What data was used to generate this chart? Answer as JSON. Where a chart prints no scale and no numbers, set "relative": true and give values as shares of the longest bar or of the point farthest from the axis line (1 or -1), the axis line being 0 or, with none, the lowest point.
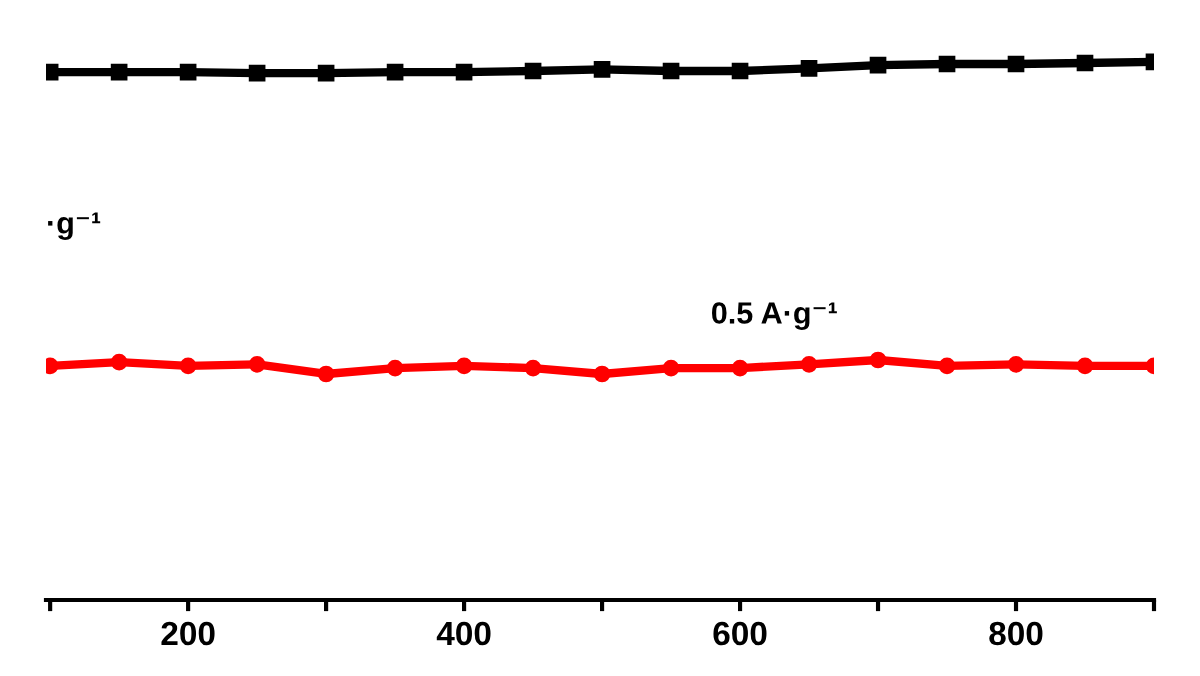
{
  "chart_data": {
    "type": "line",
    "relative": true,
    "xlim": [
      97,
      900
    ],
    "xticks": [
      {
        "value": 100,
        "label": null
      },
      200,
      {
        "value": 300,
        "label": null
      },
      400,
      {
        "value": 500,
        "label": null
      },
      600,
      {
        "value": 700,
        "label": null
      },
      800,
      {
        "value": 900,
        "label": null
      }
    ],
    "x": [
      100,
      150,
      200,
      250,
      300,
      350,
      400,
      450,
      500,
      550,
      600,
      650,
      700,
      750,
      800,
      850,
      900
    ],
    "series": [
      {
        "color": "#000000",
        "marker": "square",
        "values": [
          0.981,
          0.981,
          0.981,
          0.979,
          0.979,
          0.981,
          0.981,
          0.983,
          0.986,
          0.983,
          0.983,
          0.988,
          0.994,
          0.996,
          0.996,
          0.998,
          1.0
        ]
      },
      {
        "color": "#ff0000",
        "marker": "circle",
        "values": [
          0.435,
          0.442,
          0.435,
          0.438,
          0.42,
          0.431,
          0.435,
          0.431,
          0.42,
          0.431,
          0.431,
          0.438,
          0.446,
          0.435,
          0.438,
          0.435,
          0.435
        ]
      }
    ],
    "annotations": [
      "·g⁻¹",
      "0.5 A·g⁻¹"
    ],
    "grid": false,
    "legend": false,
    "tick_labels": "x",
    "line_style": "solid"
  }
}
